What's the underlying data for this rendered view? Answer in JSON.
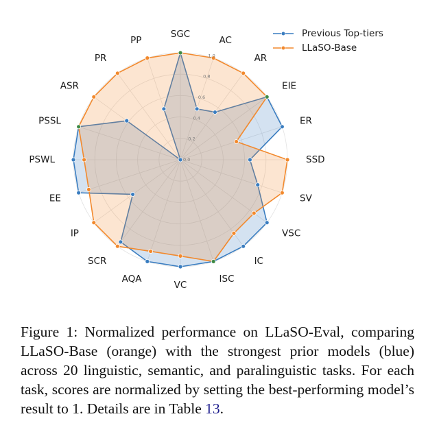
{
  "chart_data": {
    "type": "radar",
    "axes": [
      "SGC",
      "AC",
      "AR",
      "EIE",
      "ER",
      "SSD",
      "SV",
      "VSC",
      "IC",
      "ISC",
      "VC",
      "AQA",
      "SCR",
      "IP",
      "EE",
      "PSWL",
      "PSSL",
      "ASR",
      "PR",
      "PP"
    ],
    "radial_ticks": [
      "0.0",
      "0.2",
      "0.4",
      "0.6",
      "0.8",
      "1.0"
    ],
    "rlim": [
      0,
      1
    ],
    "series": [
      {
        "name": "Previous Top-tiers",
        "color": "#3a7dc0",
        "values": [
          1.0,
          0.5,
          0.55,
          1.0,
          1.0,
          0.65,
          0.76,
          1.0,
          1.0,
          1.0,
          1.0,
          1.0,
          0.95,
          0.55,
          1.0,
          1.0,
          1.0,
          0.62,
          0.0,
          0.5
        ]
      },
      {
        "name": "LLaSO-Base",
        "color": "#f2892d",
        "values": [
          1.0,
          1.0,
          1.0,
          1.0,
          0.55,
          1.0,
          1.0,
          0.85,
          0.85,
          1.0,
          0.9,
          0.9,
          1.0,
          1.0,
          0.9,
          0.9,
          1.0,
          1.0,
          1.0,
          1.0
        ]
      }
    ],
    "legend_position": "top-right"
  },
  "caption": {
    "prefix": "Figure 1:  Normalized performance on LLaSO-Eval, comparing LLaSO-Base (orange) with the strongest prior models (blue) across 20 linguistic, semantic, and paralinguistic tasks.  For each task, scores are normalized by setting the best-performing model’s result to 1. Details are in Table ",
    "ref": "13",
    "suffix": "."
  }
}
